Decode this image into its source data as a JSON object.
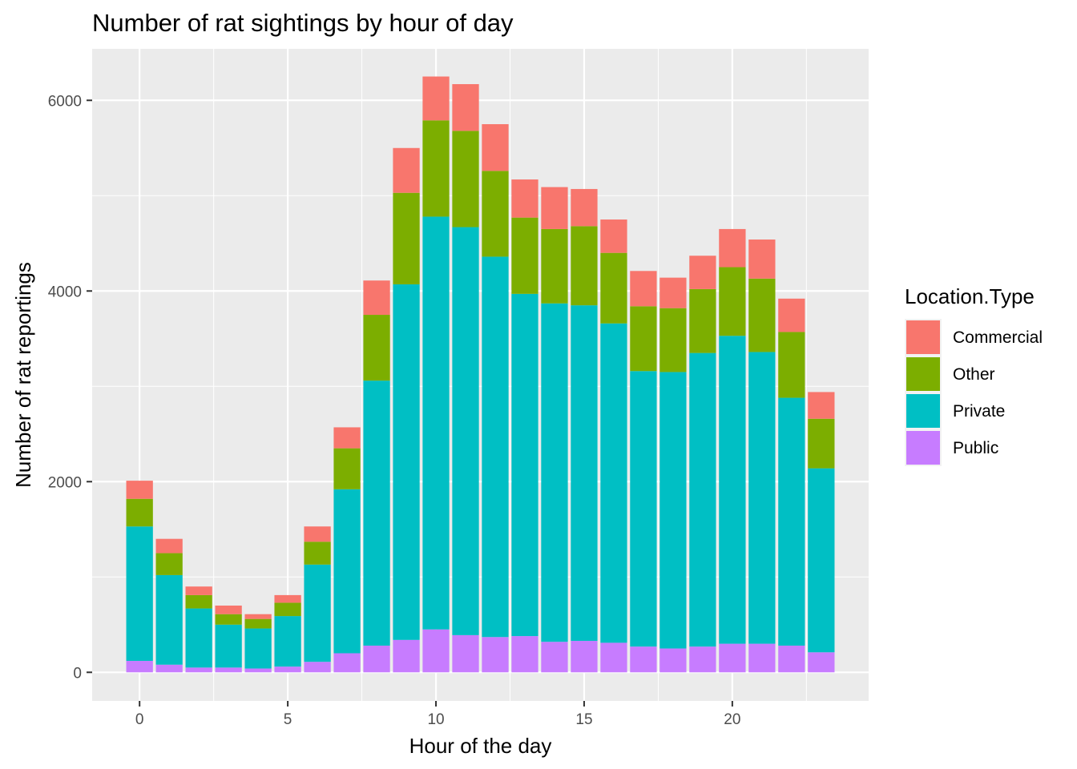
{
  "chart_data": {
    "type": "bar",
    "stacked": true,
    "title": "Number of rat sightings by hour of day",
    "xlabel": "Hour of the day",
    "ylabel": "Number of rat reportings",
    "x": [
      0,
      1,
      2,
      3,
      4,
      5,
      6,
      7,
      8,
      9,
      10,
      11,
      12,
      13,
      14,
      15,
      16,
      17,
      18,
      19,
      20,
      21,
      22,
      23
    ],
    "xlim": [
      -1.6,
      24.6
    ],
    "ylim": [
      -300,
      6540
    ],
    "x_ticks": [
      0,
      5,
      10,
      15,
      20
    ],
    "x_tick_labels": [
      "0",
      "5",
      "10",
      "15",
      "20"
    ],
    "y_ticks": [
      0,
      2000,
      4000,
      6000
    ],
    "y_tick_labels": [
      "0",
      "2000",
      "4000",
      "6000"
    ],
    "grid": true,
    "legend": {
      "title": "Location.Type",
      "position": "right",
      "entries": [
        "Commercial",
        "Other",
        "Private",
        "Public"
      ]
    },
    "series": [
      {
        "name": "Public",
        "color": "#C77CFF",
        "values": [
          120,
          80,
          50,
          50,
          40,
          60,
          110,
          200,
          280,
          340,
          450,
          390,
          370,
          380,
          320,
          330,
          310,
          270,
          250,
          270,
          300,
          300,
          280,
          210
        ]
      },
      {
        "name": "Private",
        "color": "#00BFC4",
        "values": [
          1410,
          940,
          620,
          450,
          420,
          530,
          1020,
          1720,
          2780,
          3730,
          4330,
          4280,
          3990,
          3590,
          3550,
          3520,
          3350,
          2890,
          2900,
          3080,
          3230,
          3060,
          2600,
          1930
        ]
      },
      {
        "name": "Other",
        "color": "#7CAE00",
        "values": [
          290,
          230,
          140,
          110,
          100,
          140,
          240,
          430,
          690,
          960,
          1010,
          1010,
          900,
          800,
          780,
          830,
          740,
          680,
          670,
          670,
          720,
          770,
          690,
          520
        ]
      },
      {
        "name": "Commercial",
        "color": "#F8766D",
        "values": [
          190,
          150,
          90,
          90,
          50,
          80,
          160,
          220,
          360,
          470,
          460,
          490,
          490,
          400,
          440,
          390,
          350,
          370,
          320,
          350,
          400,
          410,
          350,
          280
        ]
      }
    ]
  }
}
